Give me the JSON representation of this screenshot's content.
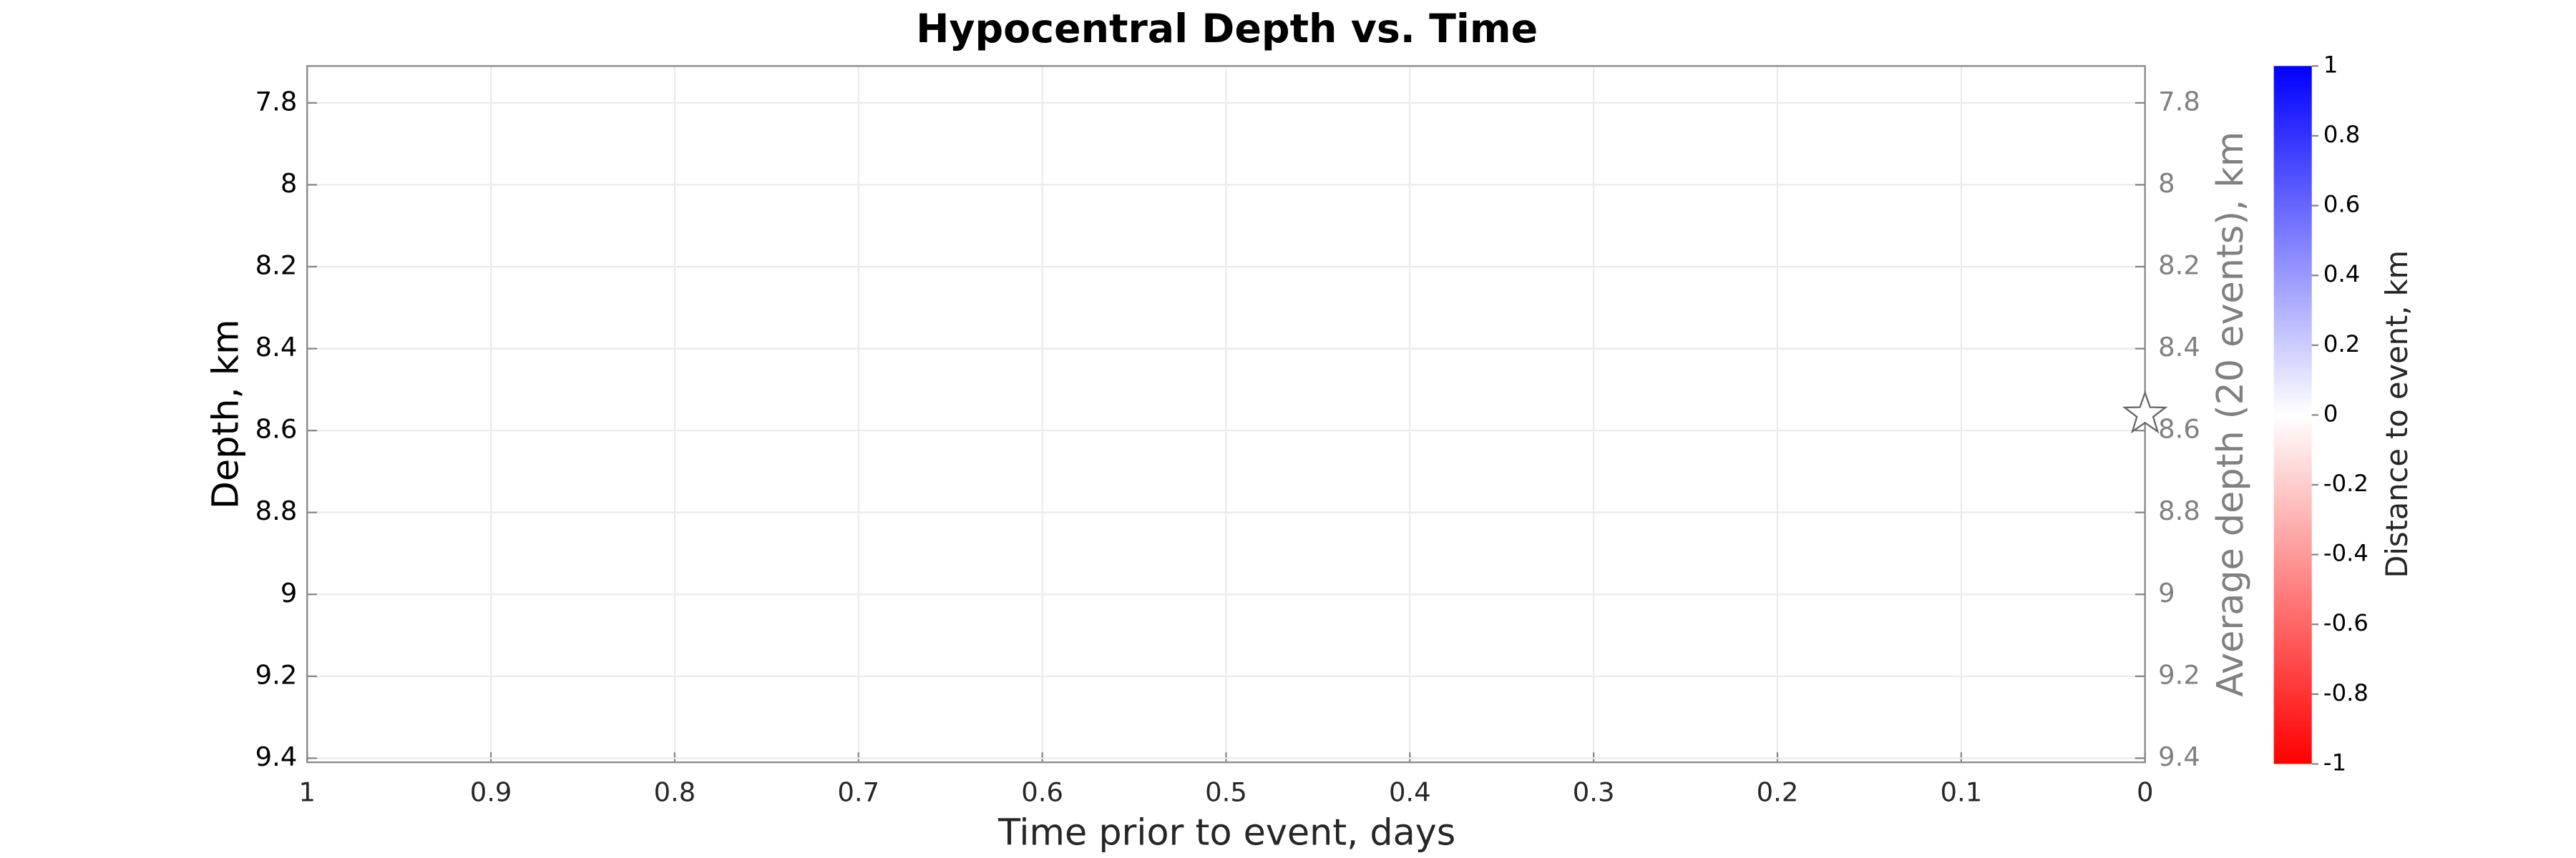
{
  "chart_data": {
    "type": "scatter",
    "title": "Hypocentral Depth vs. Time",
    "xlabel": "Time prior to event, days",
    "ylabel": "Depth, km",
    "y2label": "Average depth (20 events), km",
    "xlim": [
      1,
      0
    ],
    "xticks": [
      1,
      0.9,
      0.8,
      0.7,
      0.6,
      0.5,
      0.4,
      0.3,
      0.2,
      0.1,
      0
    ],
    "ylim": [
      7.71,
      9.41
    ],
    "y_reversed": true,
    "yticks": [
      7.8,
      8,
      8.2,
      8.4,
      8.6,
      8.8,
      9,
      9.2,
      9.4
    ],
    "y2lim": [
      7.71,
      9.41
    ],
    "y2ticks": [
      7.8,
      8,
      8.2,
      8.4,
      8.6,
      8.8,
      9,
      9.2,
      9.4
    ],
    "grid": true,
    "series": [
      {
        "x": [
          0
        ],
        "values": [
          8.56
        ],
        "marker": "star",
        "color": "#ffffff",
        "edgecolor": "#666666"
      }
    ],
    "colorbar": {
      "label": "Distance to event, km",
      "lim": [
        -1,
        1
      ],
      "ticks": [
        1,
        0.8,
        0.6,
        0.4,
        0.2,
        0,
        -0.2,
        -0.4,
        -0.6,
        -0.8,
        -1
      ],
      "colors": [
        "#ff0000",
        "#ffffff",
        "#0000ff"
      ]
    }
  }
}
